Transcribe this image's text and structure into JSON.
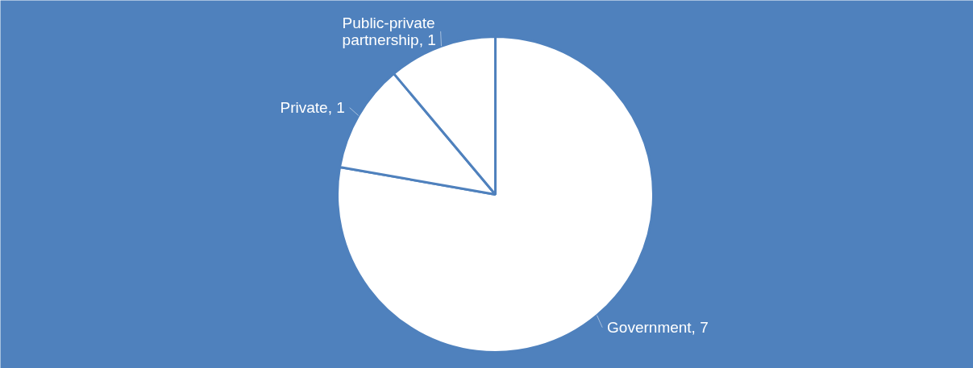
{
  "chart_data": {
    "type": "pie",
    "categories": [
      "Government",
      "Private",
      "Public-private partnership"
    ],
    "values": [
      7,
      1,
      1
    ],
    "value_labels": [
      ", 7",
      ", 1",
      ", 1"
    ],
    "colors": [
      "#ffffff",
      "#ffffff",
      "#ffffff"
    ]
  }
}
